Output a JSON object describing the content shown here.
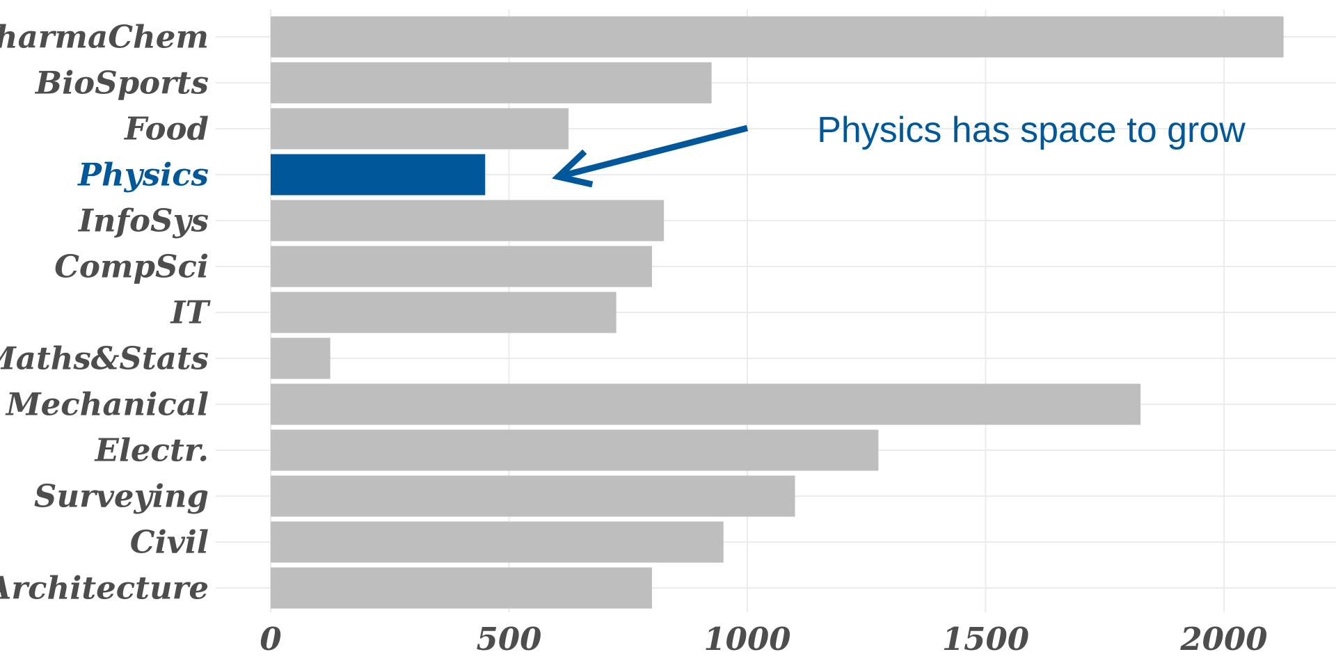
{
  "chart_data": {
    "type": "bar",
    "orientation": "horizontal",
    "categories": [
      "PharmaChem",
      "BioSports",
      "Food",
      "Physics",
      "InfoSys",
      "CompSci",
      "IT",
      "Maths&Stats",
      "Mechanical",
      "Electr.",
      "Surveying",
      "Civil",
      "Architecture"
    ],
    "values": [
      2125,
      925,
      625,
      450,
      825,
      800,
      725,
      125,
      1825,
      1275,
      1100,
      950,
      800
    ],
    "highlight": "Physics",
    "xlim": [
      0,
      2250
    ],
    "x_ticks": [
      0,
      500,
      1000,
      1500,
      2000
    ],
    "x_tick_labels": [
      "0",
      "500",
      "1000",
      "1500",
      "2000"
    ],
    "grid": true,
    "annotation": {
      "text": "Physics has space to grow",
      "target": "Physics"
    },
    "colors": {
      "bar": "#bebebe",
      "highlight": "#00589b",
      "label": "#4d4d4d",
      "grid": "#ebebeb"
    }
  }
}
